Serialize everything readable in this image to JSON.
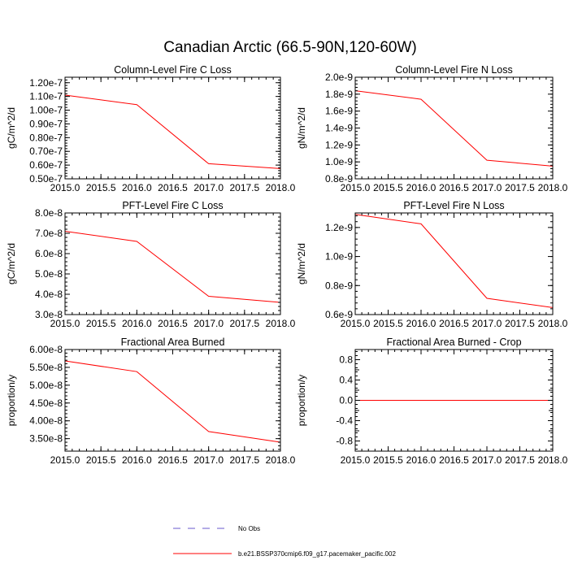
{
  "figure_title": "Canadian Arctic (66.5-90N,120-60W)",
  "colors": {
    "model_line": "#ff0000",
    "obs_line": "#6a5acd",
    "axes": "#000000"
  },
  "legend": {
    "obs_label": "No Obs",
    "model_label": "b.e21.BSSP370cmip6.f09_g17.pacemaker_pacific.002"
  },
  "chart_data": [
    {
      "type": "line",
      "title": "Column-Level Fire C Loss",
      "xlabel": "",
      "ylabel": "gC/m^2/d",
      "x": [
        2015.0,
        2016.0,
        2017.0,
        2018.0
      ],
      "series": [
        {
          "name": "b.e21.BSSP370cmip6.f09_g17.pacemaker_pacific.002",
          "values": [
            1.11e-07,
            1.04e-07,
            6.1e-08,
            5.75e-08
          ]
        }
      ],
      "xlim": [
        2015.0,
        2018.0
      ],
      "ylim": [
        5e-08,
        1.24e-07
      ],
      "xticks": [
        "2015.0",
        "2015.5",
        "2016.0",
        "2016.5",
        "2017.0",
        "2017.5",
        "2018.0"
      ],
      "xtick_values": [
        2015.0,
        2015.5,
        2016.0,
        2016.5,
        2017.0,
        2017.5,
        2018.0
      ],
      "yticks": [
        "0.50e-7",
        "0.60e-7",
        "0.70e-7",
        "0.80e-7",
        "0.90e-7",
        "1.00e-7",
        "1.10e-7",
        "1.20e-7"
      ],
      "ytick_values": [
        5e-08,
        6e-08,
        7e-08,
        8e-08,
        9e-08,
        1e-07,
        1.1e-07,
        1.2e-07
      ],
      "ymin_ticks": [],
      "zero_line": false
    },
    {
      "type": "line",
      "title": "Column-Level Fire N Loss",
      "xlabel": "",
      "ylabel": "gN/m^2/d",
      "x": [
        2015.0,
        2016.0,
        2017.0,
        2018.0
      ],
      "series": [
        {
          "name": "b.e21.BSSP370cmip6.f09_g17.pacemaker_pacific.002",
          "values": [
            1.84e-09,
            1.74e-09,
            1.02e-09,
            9.5e-10
          ]
        }
      ],
      "xlim": [
        2015.0,
        2018.0
      ],
      "ylim": [
        8e-10,
        2e-09
      ],
      "xticks": [
        "2015.0",
        "2015.5",
        "2016.0",
        "2016.5",
        "2017.0",
        "2017.5",
        "2018.0"
      ],
      "xtick_values": [
        2015.0,
        2015.5,
        2016.0,
        2016.5,
        2017.0,
        2017.5,
        2018.0
      ],
      "yticks": [
        "0.8e-9",
        "1.0e-9",
        "1.2e-9",
        "1.4e-9",
        "1.6e-9",
        "1.8e-9",
        "2.0e-9"
      ],
      "ytick_values": [
        8e-10,
        1e-09,
        1.2e-09,
        1.4e-09,
        1.6e-09,
        1.8e-09,
        2e-09
      ],
      "ymin_ticks": [],
      "zero_line": false
    },
    {
      "type": "line",
      "title": "PFT-Level Fire C Loss",
      "xlabel": "",
      "ylabel": "gC/m^2/d",
      "x": [
        2015.0,
        2016.0,
        2017.0,
        2018.0
      ],
      "series": [
        {
          "name": "b.e21.BSSP370cmip6.f09_g17.pacemaker_pacific.002",
          "values": [
            7.1e-08,
            6.6e-08,
            3.9e-08,
            3.6e-08
          ]
        }
      ],
      "xlim": [
        2015.0,
        2018.0
      ],
      "ylim": [
        3e-08,
        8e-08
      ],
      "xticks": [
        "2015.0",
        "2015.5",
        "2016.0",
        "2016.5",
        "2017.0",
        "2017.5",
        "2018.0"
      ],
      "xtick_values": [
        2015.0,
        2015.5,
        2016.0,
        2016.5,
        2017.0,
        2017.5,
        2018.0
      ],
      "yticks": [
        "3.0e-8",
        "4.0e-8",
        "5.0e-8",
        "6.0e-8",
        "7.0e-8",
        "8.0e-8"
      ],
      "ytick_values": [
        3e-08,
        4e-08,
        5e-08,
        6e-08,
        7e-08,
        8e-08
      ],
      "ymin_ticks": [],
      "zero_line": false
    },
    {
      "type": "line",
      "title": "PFT-Level Fire N Loss",
      "xlabel": "",
      "ylabel": "gN/m^2/d",
      "x": [
        2015.0,
        2016.0,
        2017.0,
        2018.0
      ],
      "series": [
        {
          "name": "b.e21.BSSP370cmip6.f09_g17.pacemaker_pacific.002",
          "values": [
            1.29e-09,
            1.225e-09,
            7.12e-10,
            6.48e-10
          ]
        }
      ],
      "xlim": [
        2015.0,
        2018.0
      ],
      "ylim": [
        6e-10,
        1.3e-09
      ],
      "xticks": [
        "2015.0",
        "2015.5",
        "2016.0",
        "2016.5",
        "2017.0",
        "2017.5",
        "2018.0"
      ],
      "xtick_values": [
        2015.0,
        2015.5,
        2016.0,
        2016.5,
        2017.0,
        2017.5,
        2018.0
      ],
      "yticks": [
        "0.6e-9",
        "0.8e-9",
        "1.0e-9",
        "1.2e-9"
      ],
      "ytick_values": [
        6e-10,
        8e-10,
        1e-09,
        1.2e-09
      ],
      "ymin_ticks": [],
      "zero_line": false
    },
    {
      "type": "line",
      "title": "Fractional Area Burned",
      "xlabel": "",
      "ylabel": "proportion/y",
      "x": [
        2015.0,
        2016.0,
        2017.0,
        2018.0
      ],
      "series": [
        {
          "name": "b.e21.BSSP370cmip6.f09_g17.pacemaker_pacific.002",
          "values": [
            5.68e-08,
            5.38e-08,
            3.7e-08,
            3.4e-08
          ]
        }
      ],
      "xlim": [
        2015.0,
        2018.0
      ],
      "ylim": [
        3.15e-08,
        6e-08
      ],
      "xticks": [
        "2015.0",
        "2015.5",
        "2016.0",
        "2016.5",
        "2017.0",
        "2017.5",
        "2018.0"
      ],
      "xtick_values": [
        2015.0,
        2015.5,
        2016.0,
        2016.5,
        2017.0,
        2017.5,
        2018.0
      ],
      "yticks": [
        "3.50e-8",
        "4.00e-8",
        "4.50e-8",
        "5.00e-8",
        "5.50e-8",
        "6.00e-8"
      ],
      "ytick_values": [
        3.5e-08,
        4e-08,
        4.5e-08,
        5e-08,
        5.5e-08,
        6e-08
      ],
      "ymin_ticks": [],
      "zero_line": false
    },
    {
      "type": "line",
      "title": "Fractional Area Burned - Crop",
      "xlabel": "",
      "ylabel": "proportion/y",
      "x": [
        2015.0,
        2016.0,
        2017.0,
        2018.0
      ],
      "series": [
        {
          "name": "b.e21.BSSP370cmip6.f09_g17.pacemaker_pacific.002",
          "values": [
            0.0,
            0.0,
            0.0,
            0.0
          ]
        }
      ],
      "xlim": [
        2015.0,
        2018.0
      ],
      "ylim": [
        -1.0,
        1.0
      ],
      "xticks": [
        "2015.0",
        "2015.5",
        "2016.0",
        "2016.5",
        "2017.0",
        "2017.5",
        "2018.0"
      ],
      "xtick_values": [
        2015.0,
        2015.5,
        2016.0,
        2016.5,
        2017.0,
        2017.5,
        2018.0
      ],
      "yticks": [
        "-0.8",
        "-0.4",
        "0.0",
        "0.4",
        "0.8"
      ],
      "ytick_values": [
        -0.8,
        -0.4,
        0.0,
        0.4,
        0.8
      ],
      "ymin_ticks": [
        -1.0,
        -0.6,
        -0.2,
        0.2,
        0.6,
        1.0
      ],
      "zero_line": true
    }
  ]
}
